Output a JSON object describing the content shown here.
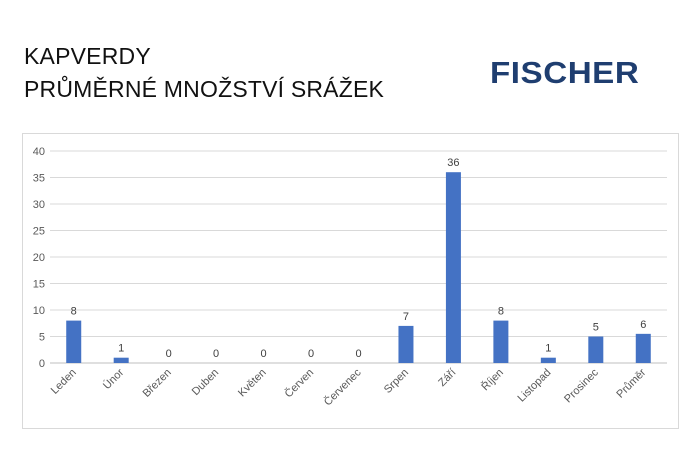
{
  "header": {
    "title_line1": "KAPVERDY",
    "title_line2": "PRŮMĚRNÉ MNOŽSTVÍ SRÁŽEK"
  },
  "logo": {
    "text": "FISCHER",
    "color": "#1f3e70"
  },
  "chart_data": {
    "type": "bar",
    "title": "",
    "xlabel": "",
    "ylabel": "",
    "categories": [
      "Leden",
      "Únor",
      "Březen",
      "Duben",
      "Květen",
      "Červen",
      "Červenec",
      "Srpen",
      "Září",
      "Říjen",
      "Listopad",
      "Prosinec",
      "Průměr"
    ],
    "values": [
      8,
      1,
      0,
      0,
      0,
      0,
      0,
      7,
      36,
      8,
      1,
      5,
      5.5
    ],
    "data_labels": [
      "8",
      "1",
      "0",
      "0",
      "0",
      "0",
      "0",
      "7",
      "36",
      "8",
      "1",
      "5",
      "6"
    ],
    "ylim": [
      0,
      40
    ],
    "yticks": [
      0,
      5,
      10,
      15,
      20,
      25,
      30,
      35,
      40
    ],
    "grid": true,
    "legend": "none",
    "bar_color": "#4472c4"
  }
}
